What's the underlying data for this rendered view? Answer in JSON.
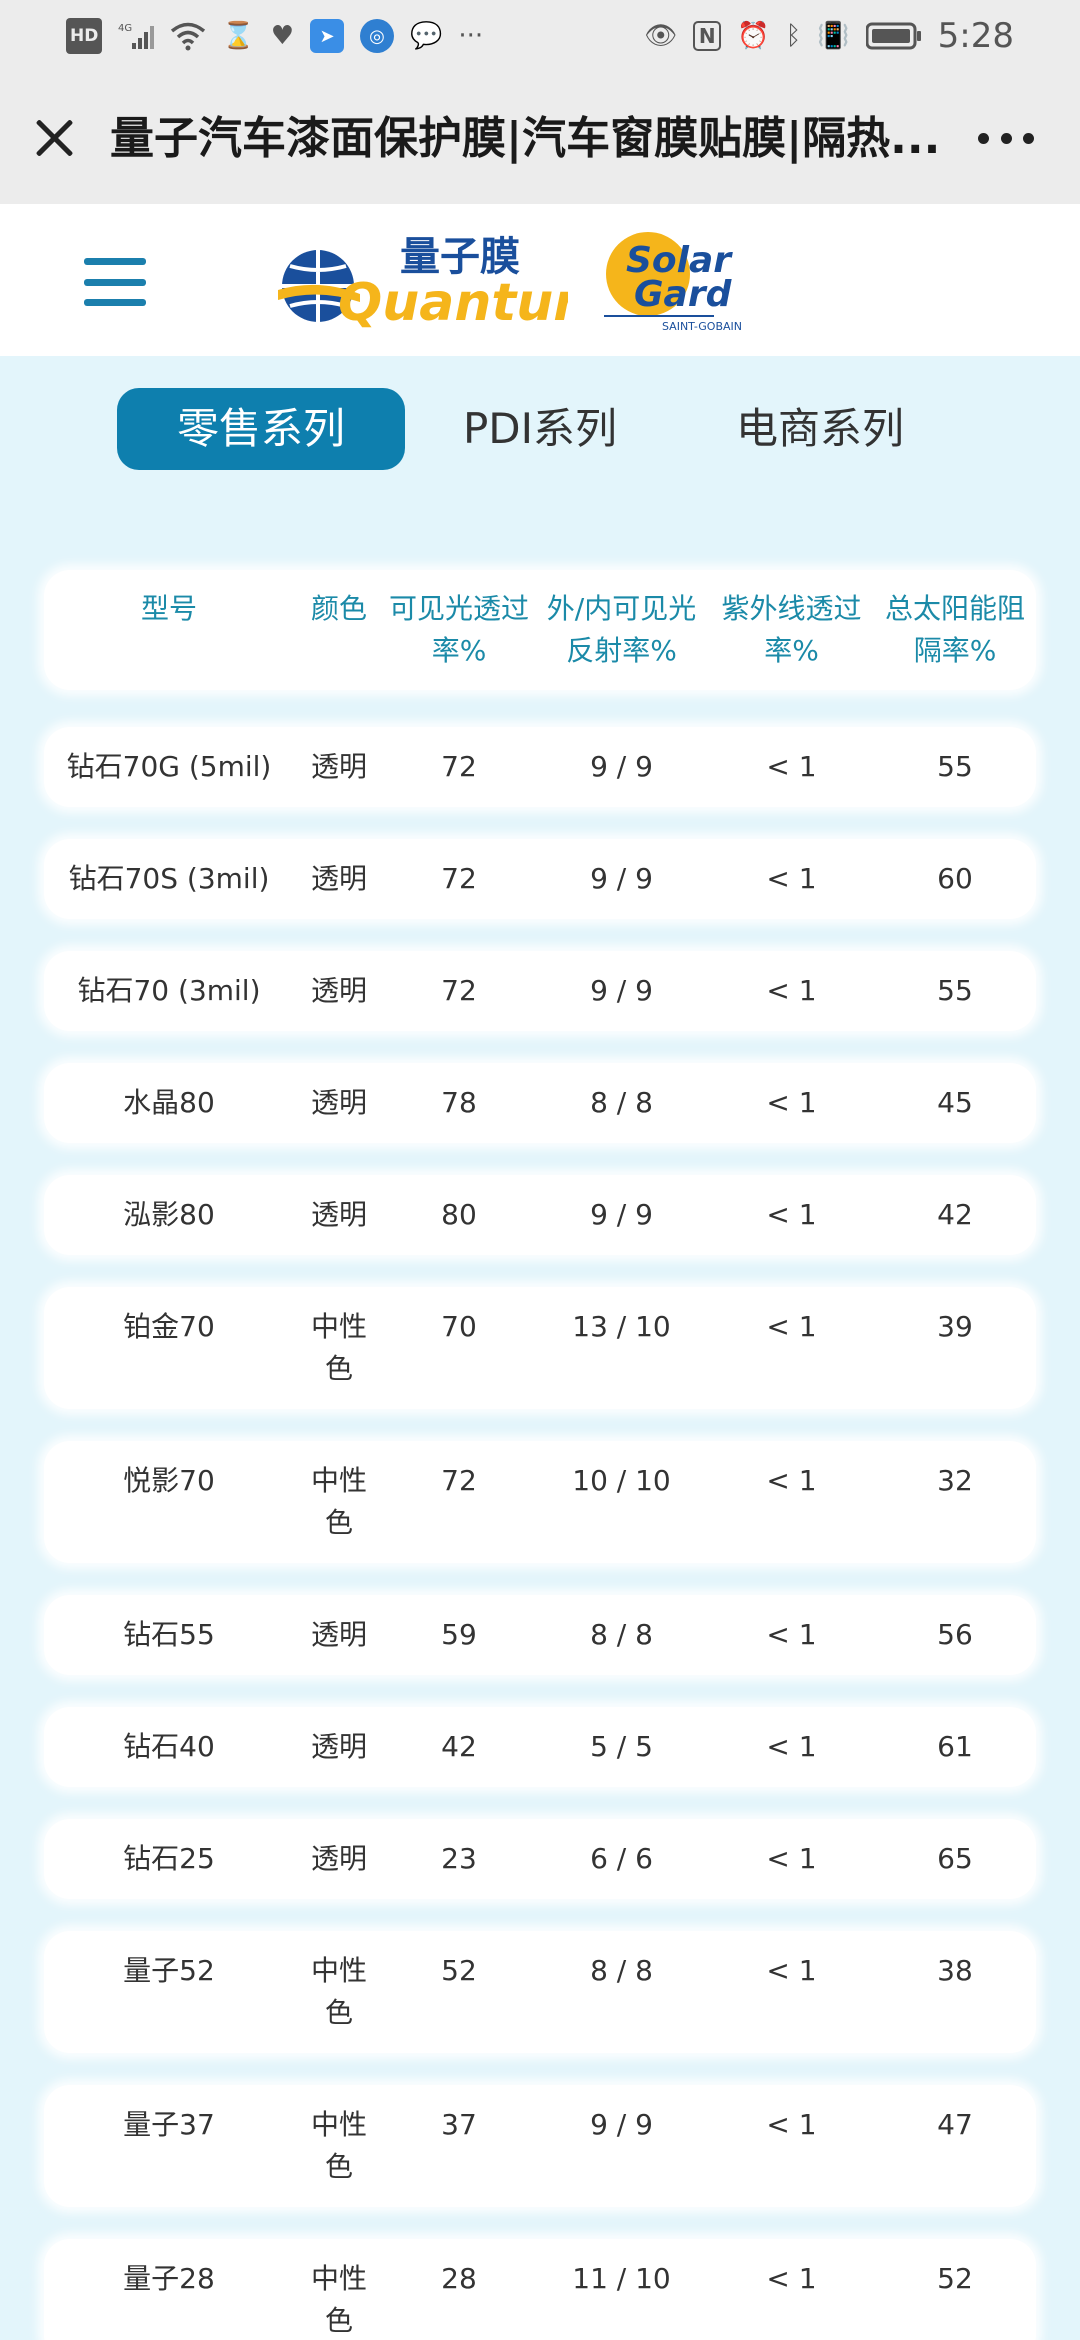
{
  "status_bar": {
    "hd": "HD",
    "network": "4G",
    "time": "5:28"
  },
  "title_bar": {
    "title": "量子汽车漆面保护膜|汽车窗膜贴膜|隔热..."
  },
  "header": {
    "brand_quantum_cn": "量子膜",
    "brand_quantum_en": "Quantum",
    "brand_solar_1": "Solar",
    "brand_solar_2": "Gard",
    "brand_solar_sub": "SAINT-GOBAIN"
  },
  "tabs": [
    {
      "label": "零售系列",
      "active": true
    },
    {
      "label": "PDI系列",
      "active": false
    },
    {
      "label": "电商系列",
      "active": false
    }
  ],
  "table": {
    "headers": [
      [
        "型号"
      ],
      [
        "颜色"
      ],
      [
        "可见光透过",
        "率%"
      ],
      [
        "外/内可见光",
        "反射率%"
      ],
      [
        "紫外线透过",
        "率%"
      ],
      [
        "总太阳能阻",
        "隔率%"
      ]
    ],
    "rows": [
      {
        "model": "钻石70G (5mil)",
        "color": [
          "透明"
        ],
        "vlt": "72",
        "reflect": "9 / 9",
        "uv": "< 1",
        "tser": "55"
      },
      {
        "model": "钻石70S (3mil)",
        "color": [
          "透明"
        ],
        "vlt": "72",
        "reflect": "9 / 9",
        "uv": "< 1",
        "tser": "60"
      },
      {
        "model": "钻石70 (3mil)",
        "color": [
          "透明"
        ],
        "vlt": "72",
        "reflect": "9 / 9",
        "uv": "< 1",
        "tser": "55"
      },
      {
        "model": "水晶80",
        "color": [
          "透明"
        ],
        "vlt": "78",
        "reflect": "8 / 8",
        "uv": "< 1",
        "tser": "45"
      },
      {
        "model": "泓影80",
        "color": [
          "透明"
        ],
        "vlt": "80",
        "reflect": "9 / 9",
        "uv": "< 1",
        "tser": "42"
      },
      {
        "model": "铂金70",
        "color": [
          "中性",
          "色"
        ],
        "vlt": "70",
        "reflect": "13 / 10",
        "uv": "< 1",
        "tser": "39"
      },
      {
        "model": "悦影70",
        "color": [
          "中性",
          "色"
        ],
        "vlt": "72",
        "reflect": "10 / 10",
        "uv": "< 1",
        "tser": "32"
      },
      {
        "model": "钻石55",
        "color": [
          "透明"
        ],
        "vlt": "59",
        "reflect": "8 / 8",
        "uv": "< 1",
        "tser": "56"
      },
      {
        "model": "钻石40",
        "color": [
          "透明"
        ],
        "vlt": "42",
        "reflect": "5 / 5",
        "uv": "< 1",
        "tser": "61"
      },
      {
        "model": "钻石25",
        "color": [
          "透明"
        ],
        "vlt": "23",
        "reflect": "6 / 6",
        "uv": "< 1",
        "tser": "65"
      },
      {
        "model": "量子52",
        "color": [
          "中性",
          "色"
        ],
        "vlt": "52",
        "reflect": "8 / 8",
        "uv": "< 1",
        "tser": "38"
      },
      {
        "model": "量子37",
        "color": [
          "中性",
          "色"
        ],
        "vlt": "37",
        "reflect": "9 / 9",
        "uv": "< 1",
        "tser": "47"
      },
      {
        "model": "量子28",
        "color": [
          "中性",
          "色"
        ],
        "vlt": "28",
        "reflect": "11 / 10",
        "uv": "< 1",
        "tser": "52"
      }
    ]
  },
  "colors": {
    "accent": "#0e7fae",
    "header_text": "#1b8aa8",
    "background": "#e3f5fb",
    "logo_yellow": "#f5b51b",
    "logo_blue": "#1a4f9c"
  }
}
